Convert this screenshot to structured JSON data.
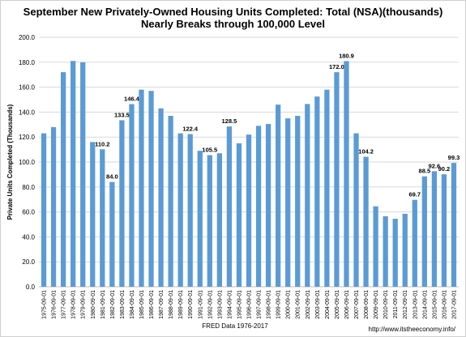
{
  "chart_data": {
    "type": "bar",
    "title": "September New Privately-Owned Housing Units Completed: Total (NSA)(thousands)",
    "subtitle": "Nearly Breaks through 100,000 Level",
    "ylabel": "Private Units Completed (Thousands)",
    "xlabel": "FRED Data 1976-2017",
    "source_note": "http://www.itstheeconomy.info/",
    "ylim": [
      0,
      200
    ],
    "yticks": [
      "0.0",
      "20.0",
      "40.0",
      "60.0",
      "80.0",
      "100.0",
      "120.0",
      "140.0",
      "160.0",
      "180.0",
      "200.0"
    ],
    "grid": true,
    "bar_color": "#5b9bd5",
    "categories": [
      "1975-09-01",
      "1976-09-01",
      "1977-09-01",
      "1978-09-01",
      "1979-09-01",
      "1980-09-01",
      "1981-09-01",
      "1982-09-01",
      "1983-09-01",
      "1984-09-01",
      "1985-09-01",
      "1986-09-01",
      "1987-09-01",
      "1988-09-01",
      "1989-09-01",
      "1990-09-01",
      "1991-09-01",
      "1992-09-01",
      "1993-09-01",
      "1994-09-01",
      "1995-09-01",
      "1996-09-01",
      "1997-09-01",
      "1998-09-01",
      "1999-09-01",
      "2000-09-01",
      "2001-09-01",
      "2002-09-01",
      "2003-09-01",
      "2004-09-01",
      "2005-09-01",
      "2006-09-01",
      "2007-09-01",
      "2008-09-01",
      "2009-09-01",
      "2010-09-01",
      "2011-09-01",
      "2012-09-01",
      "2013-09-01",
      "2014-09-01",
      "2015-09-01",
      "2016-09-01",
      "2017-09-01"
    ],
    "values": [
      123,
      128,
      172,
      181,
      180,
      116,
      110.2,
      84.0,
      133.5,
      146.4,
      158,
      157,
      143,
      137,
      123,
      122.4,
      109,
      105.5,
      107,
      128.5,
      115,
      122,
      129,
      130.5,
      146,
      135,
      137,
      146.5,
      152.5,
      158,
      172.0,
      180.9,
      123,
      104.2,
      64.5,
      56.5,
      54.5,
      58.5,
      69.7,
      88.5,
      92.6,
      90.2,
      99.3
    ],
    "data_labels": [
      null,
      null,
      null,
      null,
      null,
      null,
      "110.2",
      "84.0",
      "133.5",
      "146.4",
      null,
      null,
      null,
      null,
      null,
      "122.4",
      null,
      "105.5",
      null,
      "128.5",
      null,
      null,
      null,
      null,
      null,
      null,
      null,
      null,
      null,
      null,
      "172.0",
      "180.9",
      null,
      "104.2",
      null,
      null,
      null,
      null,
      "69.7",
      "88.5",
      "92.6",
      "90.2",
      "99.3"
    ]
  }
}
